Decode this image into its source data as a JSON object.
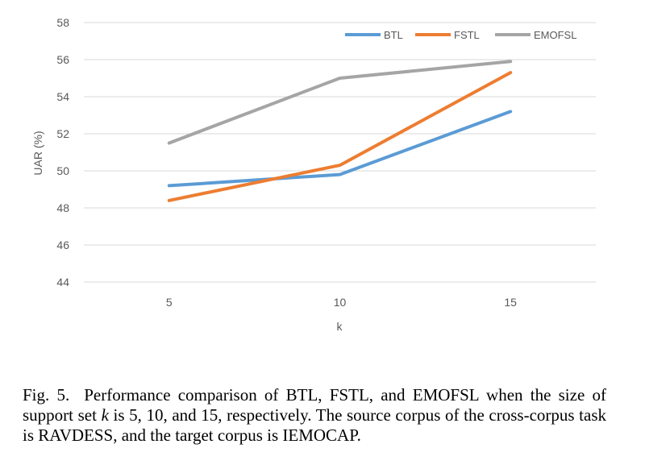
{
  "chart_data": {
    "type": "line",
    "title": "",
    "xlabel": "k",
    "ylabel": "UAR (%)",
    "x": [
      5,
      10,
      15
    ],
    "x_tick_labels": [
      "5",
      "10",
      "15"
    ],
    "ylim": [
      44,
      58
    ],
    "y_ticks": [
      44,
      46,
      48,
      50,
      52,
      54,
      56,
      58
    ],
    "y_tick_labels": [
      "44",
      "46",
      "48",
      "50",
      "52",
      "54",
      "56",
      "58"
    ],
    "grid": true,
    "legend_position": "top-right",
    "series": [
      {
        "name": "BTL",
        "values": [
          49.2,
          49.8,
          53.2
        ],
        "color": "#5b9bd5"
      },
      {
        "name": "FSTL",
        "values": [
          48.4,
          50.3,
          55.3
        ],
        "color": "#ed7d31"
      },
      {
        "name": "EMOFSL",
        "values": [
          51.5,
          55.0,
          55.9
        ],
        "color": "#a5a5a5"
      }
    ]
  },
  "caption": {
    "fig_label": "Fig. 5.",
    "text_before_k": "Performance comparison of BTL, FSTL, and EMOFSL when the size of support set ",
    "k_symbol": "k",
    "text_after_k": " is 5, 10, and 15, respectively. The source corpus of the cross-corpus task is RAVDESS, and the target corpus is IEMOCAP."
  }
}
